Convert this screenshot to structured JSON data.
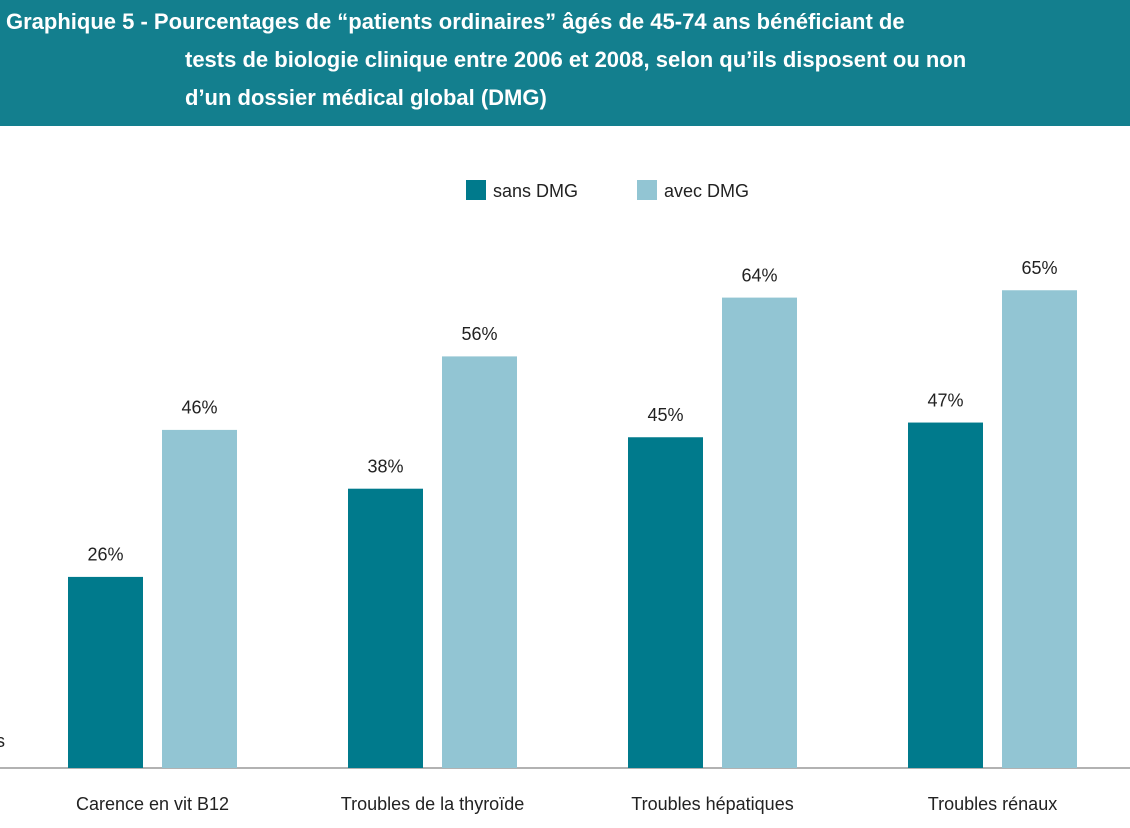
{
  "chart_data": {
    "type": "bar",
    "title": [
      "Graphique 5 - Pourcentages de “patients ordinaires” âgés de 45-74 ans bénéficiant de",
      "tests de biologie clinique  entre 2006 et 2008, selon qu’ils disposent ou non",
      "d’un dossier médical global (DMG)"
    ],
    "categories": [
      "Carence en vit B12",
      "Troubles de la thyroïde",
      "Troubles hépatiques",
      "Troubles rénaux"
    ],
    "series": [
      {
        "name": "sans DMG",
        "color": "#007a8c",
        "values": [
          26,
          38,
          45,
          47
        ],
        "value_labels": [
          "26%",
          "38%",
          "45%",
          "47%"
        ]
      },
      {
        "name": "avec DMG",
        "color": "#92c5d3",
        "values": [
          46,
          56,
          64,
          65
        ],
        "value_labels": [
          "46%",
          "56%",
          "64%",
          "65%"
        ]
      }
    ],
    "ylim": [
      0,
      100
    ],
    "fragment": "s"
  }
}
